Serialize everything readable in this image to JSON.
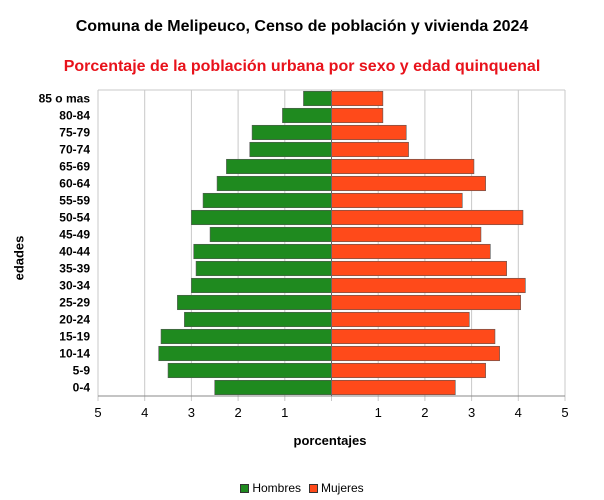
{
  "title": "Comuna de Melipeuco, Censo de población y vivienda 2024",
  "subtitle": "Porcentaje de la población urbana por sexo y edad quinquenal",
  "colors": {
    "subtitle": "#e8121b",
    "hombres": "#1f8a1f",
    "mujeres": "#ff4a1a",
    "grid": "#c8c8c8"
  },
  "chart_data": {
    "type": "bar",
    "orientation": "horizontal",
    "xlabel": "porcentajes",
    "ylabel": "edades",
    "xlim": [
      -5,
      5
    ],
    "xticks": [
      -5,
      -4,
      -3,
      -2,
      -1,
      0,
      1,
      2,
      3,
      4,
      5
    ],
    "xtick_labels": [
      "5",
      "4",
      "3",
      "2",
      "1",
      "",
      "1",
      "2",
      "3",
      "4",
      "5"
    ],
    "grid": true,
    "legend_position": "bottom",
    "categories": [
      "85 o mas",
      "80-84",
      "75-79",
      "70-74",
      "65-69",
      "60-64",
      "55-59",
      "50-54",
      "45-49",
      "40-44",
      "35-39",
      "30-34",
      "25-29",
      "20-24",
      "15-19",
      "10-14",
      "5-9",
      "0-4"
    ],
    "series": [
      {
        "name": "Hombres",
        "values": [
          0.6,
          1.05,
          1.7,
          1.75,
          2.25,
          2.45,
          2.75,
          3.0,
          2.6,
          2.95,
          2.9,
          3.0,
          3.3,
          3.15,
          3.65,
          3.7,
          3.5,
          2.5
        ]
      },
      {
        "name": "Mujeres",
        "values": [
          1.1,
          1.1,
          1.6,
          1.65,
          3.05,
          3.3,
          2.8,
          4.1,
          3.2,
          3.4,
          3.75,
          4.15,
          4.05,
          2.95,
          3.5,
          3.6,
          3.3,
          2.65
        ]
      }
    ]
  }
}
